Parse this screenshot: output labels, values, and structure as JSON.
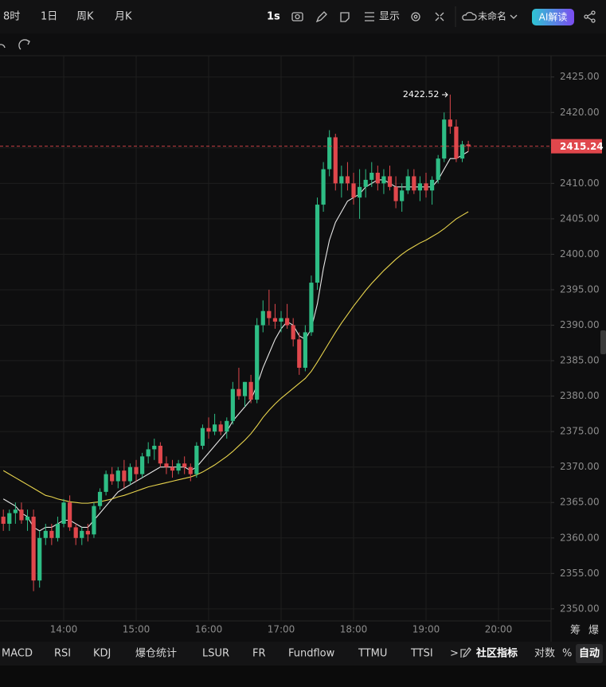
{
  "toolbar": {
    "interval_hour": "8时",
    "interval_day": "1日",
    "interval_week": "周K",
    "interval_month": "月K",
    "interval_second": "1s",
    "display": "显示",
    "layout_name": "未命名",
    "ai": "AI解读"
  },
  "side_tools": {
    "chips": "筹",
    "liquidation": "爆"
  },
  "indicators": {
    "items": [
      "MACD",
      "RSI",
      "KDJ",
      "爆仓统计",
      "LSUR",
      "FR",
      "Fundflow",
      "TTMU",
      "TTSI"
    ],
    "more": ">",
    "community": "社区指标",
    "log": "对数",
    "percent": "%",
    "auto": "自动"
  },
  "chart_data": {
    "type": "candlestick",
    "categories": [
      null,
      null,
      null,
      null,
      null,
      null,
      null,
      null,
      null,
      null,
      "14:00",
      null,
      null,
      null,
      null,
      null,
      null,
      null,
      null,
      null,
      null,
      null,
      "15:00",
      null,
      null,
      null,
      null,
      null,
      null,
      null,
      null,
      null,
      null,
      null,
      "16:00",
      null,
      null,
      null,
      null,
      null,
      null,
      null,
      null,
      null,
      null,
      null,
      "17:00",
      null,
      null,
      null,
      null,
      null,
      null,
      null,
      null,
      null,
      null,
      null,
      "18:00",
      null,
      null,
      null,
      null,
      null,
      null,
      null,
      null,
      null,
      null,
      null,
      "19:00",
      null,
      null,
      null,
      null,
      null,
      null,
      null,
      null,
      null,
      null,
      null,
      "20:00"
    ],
    "open": [
      2363,
      2362,
      2363.5,
      2364,
      2362.5,
      2363,
      2354,
      2360,
      2361,
      2360,
      2362,
      2365,
      2361.5,
      2360,
      2361,
      2360.5,
      2364.5,
      2366.5,
      2369,
      2368,
      2369.5,
      2368,
      2370,
      2369,
      2371.5,
      2372.5,
      2373,
      2370.5,
      2370,
      2369.5,
      2370.5,
      2370,
      2369,
      2373,
      2375.5,
      2375,
      2376,
      2375,
      2376.5,
      2381,
      2380,
      2382,
      2379.5,
      2390,
      2392,
      2391,
      2390.5,
      2391,
      2390,
      2388,
      2384,
      2389,
      2396,
      2407,
      2412,
      2416.5,
      2410,
      2411,
      2410,
      2408,
      2409.5,
      2410.5,
      2411.5,
      2410,
      2411,
      2409.5,
      2407.5,
      2409,
      2411,
      2409,
      2410,
      2409,
      2410.5,
      2413.5,
      2419,
      2418,
      2413.5,
      2415.5,
      null,
      null,
      null,
      null,
      null
    ],
    "high": [
      2364,
      2364,
      2365,
      2365,
      2364,
      2364,
      2361,
      2362,
      2362,
      2363,
      2365.5,
      2366,
      2362,
      2361.5,
      2362,
      2365,
      2367,
      2369.5,
      2370,
      2370,
      2371,
      2370.5,
      2371,
      2372,
      2373.5,
      2374,
      2373.5,
      2371.5,
      2371,
      2371,
      2371.5,
      2370.5,
      2373.5,
      2376,
      2377,
      2377.5,
      2376.5,
      2377,
      2382,
      2384,
      2382,
      2383,
      2391,
      2393.5,
      2395,
      2393,
      2392,
      2393,
      2391,
      2389,
      2390,
      2397,
      2408,
      2413,
      2417.5,
      2417,
      2412.5,
      2413,
      2411.5,
      2412,
      2412,
      2413,
      2412.5,
      2412,
      2412.5,
      2411,
      2410,
      2412,
      2412,
      2411,
      2411.5,
      2411,
      2414,
      2420,
      2422.52,
      2419,
      2416,
      2416,
      null,
      null,
      null,
      null,
      null
    ],
    "low": [
      2361,
      2361,
      2362,
      2362,
      2361,
      2352.5,
      2353,
      2359,
      2359,
      2359.5,
      2361.5,
      2361,
      2359,
      2359,
      2359.5,
      2360,
      2364,
      2366,
      2367.5,
      2367,
      2367,
      2367.5,
      2368,
      2368.5,
      2370.5,
      2371,
      2370,
      2369,
      2368.5,
      2369,
      2369,
      2368,
      2368.5,
      2372.5,
      2374,
      2374.5,
      2374.5,
      2374,
      2376,
      2379.5,
      2378.5,
      2379,
      2379,
      2389,
      2390,
      2389.5,
      2389,
      2389.5,
      2387,
      2383,
      2383.5,
      2388.5,
      2395,
      2406,
      2411,
      2409,
      2408,
      2409,
      2407,
      2405,
      2408,
      2409.5,
      2409,
      2408.5,
      2409,
      2406.5,
      2406,
      2408.5,
      2408.5,
      2407.5,
      2408,
      2407,
      2410,
      2413,
      2417,
      2413,
      2413,
      2414.5,
      null,
      null,
      null,
      null,
      null
    ],
    "close": [
      2362,
      2363.5,
      2364,
      2362.5,
      2363,
      2354,
      2360,
      2361,
      2360,
      2362,
      2365,
      2361.5,
      2360,
      2361,
      2360.5,
      2364.5,
      2366.5,
      2369,
      2368,
      2369.5,
      2368,
      2370,
      2369,
      2371.5,
      2372.5,
      2373,
      2370.5,
      2370,
      2369.5,
      2370.5,
      2370,
      2369,
      2373,
      2375.5,
      2375,
      2376,
      2375,
      2376.5,
      2381,
      2380,
      2382,
      2379.5,
      2390,
      2392,
      2391,
      2390.5,
      2391,
      2390,
      2388,
      2384,
      2389,
      2396,
      2407,
      2412,
      2416.5,
      2410,
      2411,
      2410,
      2408,
      2409.5,
      2410.5,
      2411.5,
      2410,
      2411,
      2409.5,
      2407.5,
      2409,
      2411,
      2409,
      2410,
      2409,
      2410.5,
      2413.5,
      2419,
      2418,
      2413.5,
      2415.5,
      2415.24,
      null,
      null,
      null,
      null,
      null
    ],
    "up_color": "#2ebd85",
    "down_color": "#e0474c",
    "lines": [
      {
        "color": "#e6e6e6",
        "values": [
          2365.5,
          2365,
          2364.5,
          2363.5,
          2363,
          2361.5,
          2361,
          2361.5,
          2361.5,
          2362,
          2362.5,
          2362.5,
          2362,
          2361.5,
          2361.5,
          2362.5,
          2363.5,
          2364.5,
          2365.5,
          2366.5,
          2367,
          2367.5,
          2368,
          2368.5,
          2369,
          2369.5,
          2370,
          2370,
          2370,
          2370,
          2370,
          2369.5,
          2370,
          2371,
          2372,
          2373,
          2374,
          2375,
          2376.5,
          2377.5,
          2378.5,
          2379.5,
          2381.5,
          2384,
          2386,
          2388,
          2389.5,
          2390.5,
          2390,
          2388.5,
          2388,
          2389.5,
          2393,
          2398,
          2402,
          2404.5,
          2406,
          2407.5,
          2408,
          2408.5,
          2409.5,
          2410,
          2410.5,
          2410.5,
          2410,
          2409.5,
          2409.5,
          2409.5,
          2409.5,
          2409.5,
          2409.5,
          2409.5,
          2410.5,
          2412,
          2413.5,
          2413.5,
          2414,
          2414.5,
          null,
          null,
          null,
          null,
          null
        ]
      },
      {
        "color": "#e8d44d",
        "values": [
          2369.5,
          2369,
          2368.5,
          2368,
          2367.5,
          2367,
          2366.5,
          2366,
          2365.8,
          2365.5,
          2365.3,
          2365.1,
          2365,
          2364.9,
          2364.9,
          2365,
          2365.1,
          2365.3,
          2365.5,
          2365.8,
          2366,
          2366.3,
          2366.6,
          2366.9,
          2367.2,
          2367.4,
          2367.6,
          2367.8,
          2368,
          2368.2,
          2368.4,
          2368.6,
          2368.9,
          2369.3,
          2369.8,
          2370.3,
          2370.9,
          2371.5,
          2372.2,
          2373,
          2373.8,
          2374.7,
          2375.8,
          2377,
          2378,
          2378.9,
          2379.7,
          2380.4,
          2381.1,
          2381.8,
          2382.5,
          2383.5,
          2384.8,
          2386.2,
          2387.6,
          2389,
          2390.3,
          2391.5,
          2392.7,
          2393.8,
          2394.9,
          2395.9,
          2396.8,
          2397.7,
          2398.5,
          2399.3,
          2400,
          2400.6,
          2401.1,
          2401.6,
          2402,
          2402.5,
          2403,
          2403.6,
          2404.3,
          2405,
          2405.5,
          2406,
          null,
          null,
          null,
          null,
          null
        ]
      }
    ],
    "ylim": [
      2348.3,
      2428.0
    ],
    "yticks": [
      {
        "value": 2425,
        "label": "2425.00"
      },
      {
        "value": 2420,
        "label": "2420.00"
      },
      {
        "value": 2415,
        "label": "2415.00"
      },
      {
        "value": 2410,
        "label": "2410.00"
      },
      {
        "value": 2405,
        "label": "2405.00"
      },
      {
        "value": 2400,
        "label": "2400.00"
      },
      {
        "value": 2395,
        "label": "2395.00"
      },
      {
        "value": 2390,
        "label": "2390.00"
      },
      {
        "value": 2385,
        "label": "2385.00"
      },
      {
        "value": 2380,
        "label": "2380.00"
      },
      {
        "value": 2375,
        "label": "2375.00"
      },
      {
        "value": 2370,
        "label": "2370.00"
      },
      {
        "value": 2365,
        "label": "2365.00"
      },
      {
        "value": 2360,
        "label": "2360.00"
      },
      {
        "value": 2355,
        "label": "2355.00"
      },
      {
        "value": 2350,
        "label": "2350.00"
      }
    ],
    "grid": true
  }
}
